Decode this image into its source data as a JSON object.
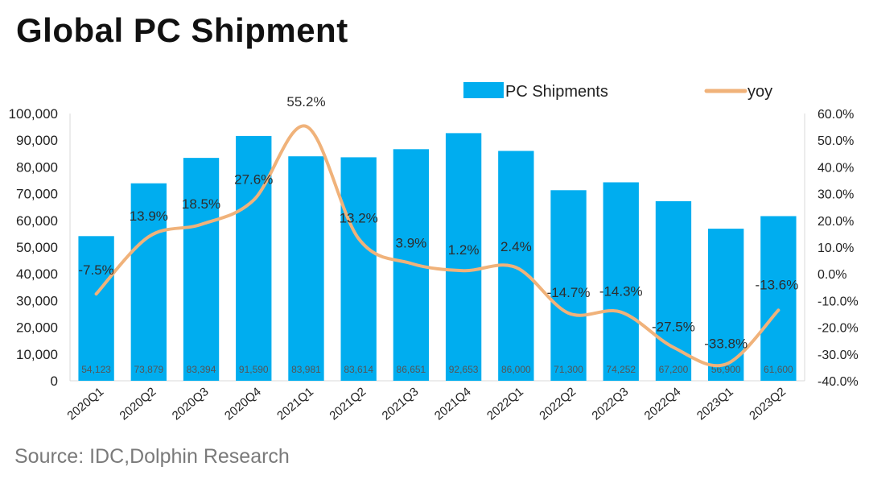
{
  "title": "Global PC Shipment",
  "source": "Source: IDC,Dolphin Research",
  "colors": {
    "bar": "#00adef",
    "line": "#f0b27a"
  },
  "chart_data": {
    "type": "bar",
    "categories": [
      "2020Q1",
      "2020Q2",
      "2020Q3",
      "2020Q4",
      "2021Q1",
      "2021Q2",
      "2021Q3",
      "2021Q4",
      "2022Q1",
      "2022Q2",
      "2022Q3",
      "2022Q4",
      "2023Q1",
      "2023Q2"
    ],
    "series": [
      {
        "name": "PC Shipments",
        "type": "bar",
        "axis": "left",
        "values": [
          54123,
          73879,
          83394,
          91590,
          83981,
          83614,
          86651,
          92653,
          86000,
          71300,
          74252,
          67200,
          56900,
          61600
        ],
        "labels": [
          "54,123",
          "73,879",
          "83,394",
          "91,590",
          "83,981",
          "83,614",
          "86,651",
          "92,653",
          "86,000",
          "71,300",
          "74,252",
          "67,200",
          "56,900",
          "61,600"
        ]
      },
      {
        "name": "yoy",
        "type": "line",
        "axis": "right",
        "values": [
          -7.5,
          13.9,
          18.5,
          27.6,
          55.2,
          13.2,
          3.9,
          1.2,
          2.4,
          -14.7,
          -14.3,
          -27.5,
          -33.8,
          -13.6
        ],
        "labels": [
          "-7.5%",
          "13.9%",
          "18.5%",
          "27.6%",
          "55.2%",
          "13.2%",
          "3.9%",
          "1.2%",
          "2.4%",
          "-14.7%",
          "-14.3%",
          "-27.5%",
          "-33.8%",
          "-13.6%"
        ]
      }
    ],
    "y_left": {
      "min": 0,
      "max": 100000,
      "ticks": [
        0,
        10000,
        20000,
        30000,
        40000,
        50000,
        60000,
        70000,
        80000,
        90000,
        100000
      ],
      "tick_labels": [
        "0",
        "10,000",
        "20,000",
        "30,000",
        "40,000",
        "50,000",
        "60,000",
        "70,000",
        "80,000",
        "90,000",
        "100,000"
      ]
    },
    "y_right": {
      "min": -40,
      "max": 60,
      "ticks": [
        -40,
        -30,
        -20,
        -10,
        0,
        10,
        20,
        30,
        40,
        50,
        60
      ],
      "tick_labels": [
        "-40.0%",
        "-30.0%",
        "-20.0%",
        "-10.0%",
        "0.0%",
        "10.0%",
        "20.0%",
        "30.0%",
        "40.0%",
        "50.0%",
        "60.0%"
      ]
    },
    "legend": {
      "position": "top",
      "items": [
        "PC Shipments",
        "yoy"
      ]
    },
    "grid": false
  }
}
